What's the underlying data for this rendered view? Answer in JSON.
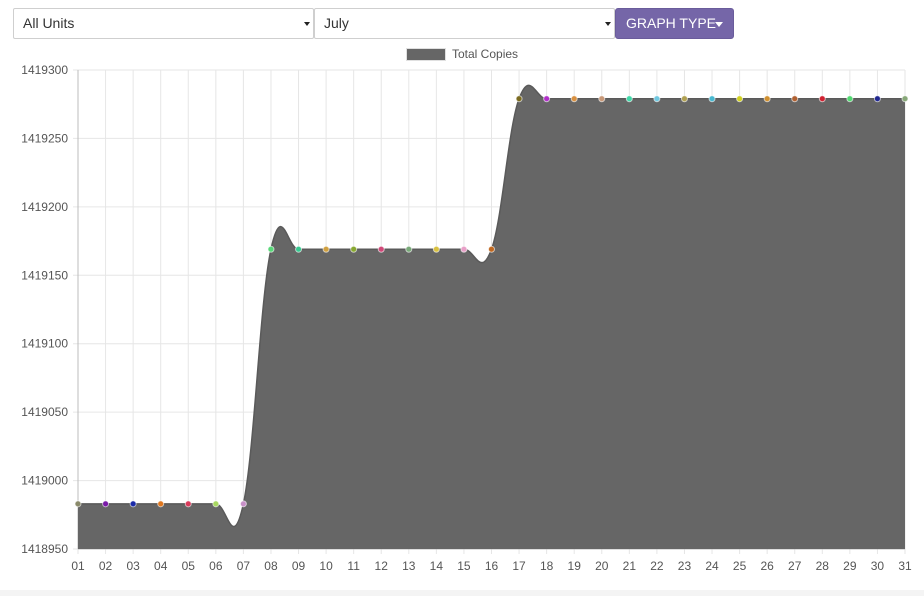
{
  "filters": {
    "units_value": "All Units",
    "month_value": "July"
  },
  "graph_type_button": "GRAPH TYPE",
  "chart_data": {
    "type": "area",
    "title": "",
    "xlabel": "",
    "ylabel": "",
    "categories": [
      "01",
      "02",
      "03",
      "04",
      "05",
      "06",
      "07",
      "08",
      "09",
      "10",
      "11",
      "12",
      "13",
      "14",
      "15",
      "16",
      "17",
      "18",
      "19",
      "20",
      "21",
      "22",
      "23",
      "24",
      "25",
      "26",
      "27",
      "28",
      "29",
      "30",
      "31"
    ],
    "ylim": [
      1418950,
      1419300
    ],
    "yticks": [
      1418950,
      1419000,
      1419050,
      1419100,
      1419150,
      1419200,
      1419250,
      1419300
    ],
    "grid": true,
    "legend": "top-center",
    "series": [
      {
        "name": "Total Copies",
        "color": "#666666",
        "values": [
          1418983,
          1418983,
          1418983,
          1418983,
          1418983,
          1418983,
          1418983,
          1419169,
          1419169,
          1419169,
          1419169,
          1419169,
          1419169,
          1419169,
          1419169,
          1419169,
          1419279,
          1419279,
          1419279,
          1419279,
          1419279,
          1419279,
          1419279,
          1419279,
          1419279,
          1419279,
          1419279,
          1419279,
          1419279,
          1419279,
          1419279
        ],
        "point_colors": [
          "#8a8a6a",
          "#7a1aa8",
          "#1a2aa8",
          "#e07820",
          "#d83a5a",
          "#a8d860",
          "#c890c8",
          "#58d878",
          "#38c890",
          "#d0a040",
          "#88a830",
          "#d04878",
          "#78a878",
          "#d8c040",
          "#e8a0c8",
          "#c06820",
          "#7a6a20",
          "#b030c8",
          "#d89040",
          "#c89878",
          "#40d8a8",
          "#70c8e0",
          "#b0a050",
          "#48b8d0",
          "#d0d020",
          "#d09030",
          "#b06030",
          "#d02030",
          "#50d870",
          "#202890",
          "#88a878"
        ]
      }
    ]
  }
}
